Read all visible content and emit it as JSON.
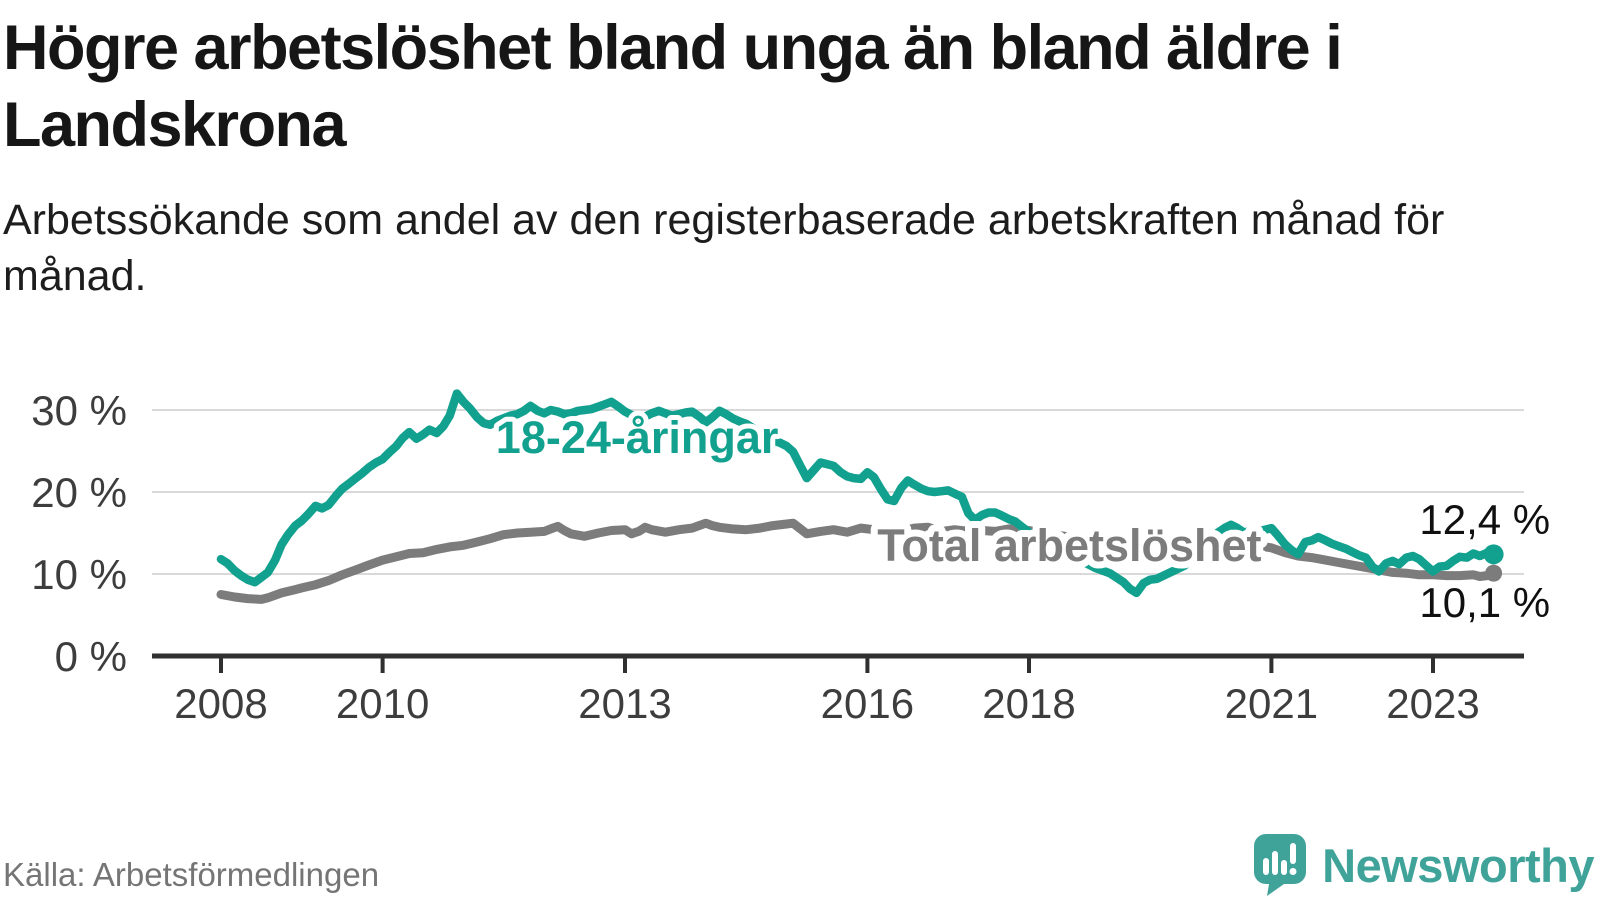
{
  "header": {
    "title": "Högre arbetslöshet bland unga än bland äldre i Landskrona",
    "subtitle": "Arbetssökande som andel av den registerbaserade arbetskraften månad för månad."
  },
  "footer": {
    "source": "Källa: Arbetsförmedlingen",
    "brand": "Newsworthy",
    "brand_icon": "newsworthy-speech-bubble-chart-icon",
    "brand_color": "#3fa39a"
  },
  "chart_data": {
    "type": "line",
    "unit": "%",
    "grid": true,
    "x_axis": {
      "ticks": [
        2008,
        2010,
        2013,
        2016,
        2018,
        2021,
        2023
      ],
      "labels": [
        "2008",
        "2010",
        "2013",
        "2016",
        "2018",
        "2021",
        "2023"
      ],
      "range": [
        2007.1,
        2024.1
      ]
    },
    "y_axis": {
      "ticks": [
        0,
        10,
        20,
        30
      ],
      "labels": [
        "0 %",
        "10 %",
        "20 %",
        "30 %"
      ],
      "range": [
        0,
        33
      ]
    },
    "series": [
      {
        "name": "18-24-åringar",
        "color": "#13a18f",
        "end_value": 12.4,
        "end_label": "12,4 %",
        "label_anchor": {
          "x": 2013.15,
          "y": 26.7
        },
        "end_label_anchor": {
          "x": 2024.45,
          "y": 14.9
        },
        "points": [
          [
            2008.0,
            11.8
          ],
          [
            2008.08,
            11.3
          ],
          [
            2008.17,
            10.4
          ],
          [
            2008.25,
            9.8
          ],
          [
            2008.33,
            9.3
          ],
          [
            2008.42,
            9.0
          ],
          [
            2008.5,
            9.6
          ],
          [
            2008.58,
            10.2
          ],
          [
            2008.67,
            11.7
          ],
          [
            2008.75,
            13.6
          ],
          [
            2008.83,
            14.8
          ],
          [
            2008.92,
            15.9
          ],
          [
            2009.0,
            16.5
          ],
          [
            2009.08,
            17.3
          ],
          [
            2009.17,
            18.3
          ],
          [
            2009.25,
            18.0
          ],
          [
            2009.33,
            18.4
          ],
          [
            2009.42,
            19.5
          ],
          [
            2009.5,
            20.4
          ],
          [
            2009.58,
            21.0
          ],
          [
            2009.67,
            21.7
          ],
          [
            2009.75,
            22.3
          ],
          [
            2009.83,
            23.0
          ],
          [
            2009.92,
            23.6
          ],
          [
            2010.0,
            24.0
          ],
          [
            2010.08,
            24.8
          ],
          [
            2010.17,
            25.6
          ],
          [
            2010.25,
            26.6
          ],
          [
            2010.33,
            27.3
          ],
          [
            2010.42,
            26.5
          ],
          [
            2010.5,
            27.0
          ],
          [
            2010.58,
            27.6
          ],
          [
            2010.67,
            27.2
          ],
          [
            2010.75,
            28.0
          ],
          [
            2010.83,
            29.3
          ],
          [
            2010.92,
            32.0
          ],
          [
            2011.0,
            31.0
          ],
          [
            2011.08,
            30.2
          ],
          [
            2011.17,
            29.1
          ],
          [
            2011.25,
            28.4
          ],
          [
            2011.33,
            28.2
          ],
          [
            2011.42,
            28.7
          ],
          [
            2011.5,
            29.0
          ],
          [
            2011.58,
            29.3
          ],
          [
            2011.67,
            29.5
          ],
          [
            2011.75,
            29.9
          ],
          [
            2011.83,
            30.5
          ],
          [
            2011.92,
            29.9
          ],
          [
            2012.0,
            29.6
          ],
          [
            2012.08,
            30.0
          ],
          [
            2012.17,
            29.8
          ],
          [
            2012.25,
            29.5
          ],
          [
            2012.33,
            29.6
          ],
          [
            2012.42,
            29.9
          ],
          [
            2012.5,
            30.0
          ],
          [
            2012.58,
            30.1
          ],
          [
            2012.67,
            30.4
          ],
          [
            2012.75,
            30.7
          ],
          [
            2012.83,
            31.0
          ],
          [
            2012.92,
            30.4
          ],
          [
            2013.0,
            29.8
          ],
          [
            2013.08,
            29.4
          ],
          [
            2013.17,
            29.1
          ],
          [
            2013.25,
            29.2
          ],
          [
            2013.33,
            29.6
          ],
          [
            2013.42,
            29.9
          ],
          [
            2013.5,
            29.6
          ],
          [
            2013.58,
            29.3
          ],
          [
            2013.67,
            29.5
          ],
          [
            2013.75,
            29.7
          ],
          [
            2013.83,
            29.8
          ],
          [
            2013.92,
            29.2
          ],
          [
            2014.0,
            28.5
          ],
          [
            2014.08,
            29.1
          ],
          [
            2014.17,
            29.9
          ],
          [
            2014.25,
            29.5
          ],
          [
            2014.33,
            29.0
          ],
          [
            2014.42,
            28.6
          ],
          [
            2014.5,
            28.3
          ],
          [
            2014.58,
            27.8
          ],
          [
            2014.67,
            27.2
          ],
          [
            2014.75,
            26.7
          ],
          [
            2014.83,
            26.3
          ],
          [
            2014.92,
            26.0
          ],
          [
            2015.0,
            25.6
          ],
          [
            2015.08,
            24.9
          ],
          [
            2015.17,
            23.2
          ],
          [
            2015.25,
            21.7
          ],
          [
            2015.33,
            22.6
          ],
          [
            2015.42,
            23.6
          ],
          [
            2015.5,
            23.4
          ],
          [
            2015.58,
            23.2
          ],
          [
            2015.67,
            22.4
          ],
          [
            2015.75,
            21.9
          ],
          [
            2015.83,
            21.7
          ],
          [
            2015.92,
            21.6
          ],
          [
            2016.0,
            22.4
          ],
          [
            2016.08,
            21.8
          ],
          [
            2016.17,
            20.3
          ],
          [
            2016.25,
            19.1
          ],
          [
            2016.33,
            18.9
          ],
          [
            2016.42,
            20.5
          ],
          [
            2016.5,
            21.4
          ],
          [
            2016.58,
            20.9
          ],
          [
            2016.67,
            20.4
          ],
          [
            2016.75,
            20.1
          ],
          [
            2016.83,
            20.0
          ],
          [
            2016.92,
            20.1
          ],
          [
            2017.0,
            20.2
          ],
          [
            2017.08,
            19.8
          ],
          [
            2017.17,
            19.4
          ],
          [
            2017.25,
            17.4
          ],
          [
            2017.33,
            16.6
          ],
          [
            2017.42,
            17.2
          ],
          [
            2017.5,
            17.5
          ],
          [
            2017.58,
            17.5
          ],
          [
            2017.67,
            17.1
          ],
          [
            2017.75,
            16.7
          ],
          [
            2017.83,
            16.4
          ],
          [
            2017.92,
            15.7
          ],
          [
            2018.0,
            15.1
          ],
          [
            2018.17,
            14.2
          ],
          [
            2018.33,
            13.2
          ],
          [
            2018.5,
            12.4
          ],
          [
            2018.67,
            11.5
          ],
          [
            2018.83,
            10.7
          ],
          [
            2019.0,
            10.1
          ],
          [
            2019.17,
            9.0
          ],
          [
            2019.25,
            8.2
          ],
          [
            2019.33,
            7.7
          ],
          [
            2019.42,
            8.9
          ],
          [
            2019.5,
            9.3
          ],
          [
            2019.58,
            9.4
          ],
          [
            2019.75,
            10.2
          ],
          [
            2019.92,
            11.0
          ],
          [
            2020.0,
            11.6
          ],
          [
            2020.08,
            12.2
          ],
          [
            2020.17,
            13.1
          ],
          [
            2020.25,
            14.3
          ],
          [
            2020.33,
            15.0
          ],
          [
            2020.42,
            15.6
          ],
          [
            2020.5,
            16.0
          ],
          [
            2020.58,
            15.6
          ],
          [
            2020.67,
            15.0
          ],
          [
            2020.75,
            15.4
          ],
          [
            2020.83,
            15.2
          ],
          [
            2020.92,
            15.4
          ],
          [
            2021.0,
            15.6
          ],
          [
            2021.08,
            14.7
          ],
          [
            2021.17,
            13.6
          ],
          [
            2021.25,
            12.9
          ],
          [
            2021.33,
            12.4
          ],
          [
            2021.42,
            13.9
          ],
          [
            2021.5,
            14.1
          ],
          [
            2021.58,
            14.5
          ],
          [
            2021.67,
            14.1
          ],
          [
            2021.75,
            13.7
          ],
          [
            2021.83,
            13.4
          ],
          [
            2021.92,
            13.1
          ],
          [
            2022.0,
            12.7
          ],
          [
            2022.08,
            12.3
          ],
          [
            2022.17,
            12.0
          ],
          [
            2022.25,
            10.9
          ],
          [
            2022.33,
            10.3
          ],
          [
            2022.42,
            11.3
          ],
          [
            2022.5,
            11.6
          ],
          [
            2022.58,
            11.2
          ],
          [
            2022.67,
            12.0
          ],
          [
            2022.75,
            12.2
          ],
          [
            2022.83,
            11.8
          ],
          [
            2022.92,
            11.0
          ],
          [
            2023.0,
            10.3
          ],
          [
            2023.08,
            10.9
          ],
          [
            2023.17,
            11.0
          ],
          [
            2023.25,
            11.6
          ],
          [
            2023.33,
            12.1
          ],
          [
            2023.42,
            12.0
          ],
          [
            2023.5,
            12.5
          ],
          [
            2023.58,
            12.2
          ],
          [
            2023.67,
            12.6
          ],
          [
            2023.75,
            12.4
          ]
        ]
      },
      {
        "name": "Total arbetslöshet",
        "color": "#7c7c7c",
        "end_value": 10.1,
        "end_label": "10,1 %",
        "label_anchor": {
          "x": 2018.5,
          "y": 13.55
        },
        "end_label_anchor": {
          "x": 2024.45,
          "y": 4.75
        },
        "points": [
          [
            2008.0,
            7.5
          ],
          [
            2008.17,
            7.2
          ],
          [
            2008.33,
            7.0
          ],
          [
            2008.5,
            6.9
          ],
          [
            2008.58,
            7.1
          ],
          [
            2008.75,
            7.7
          ],
          [
            2008.92,
            8.1
          ],
          [
            2009.0,
            8.3
          ],
          [
            2009.17,
            8.7
          ],
          [
            2009.33,
            9.2
          ],
          [
            2009.5,
            9.9
          ],
          [
            2009.67,
            10.5
          ],
          [
            2009.83,
            11.1
          ],
          [
            2010.0,
            11.7
          ],
          [
            2010.17,
            12.1
          ],
          [
            2010.33,
            12.5
          ],
          [
            2010.5,
            12.6
          ],
          [
            2010.67,
            13.0
          ],
          [
            2010.83,
            13.3
          ],
          [
            2011.0,
            13.5
          ],
          [
            2011.17,
            13.9
          ],
          [
            2011.33,
            14.3
          ],
          [
            2011.5,
            14.8
          ],
          [
            2011.67,
            15.0
          ],
          [
            2011.83,
            15.1
          ],
          [
            2012.0,
            15.2
          ],
          [
            2012.08,
            15.5
          ],
          [
            2012.17,
            15.8
          ],
          [
            2012.25,
            15.3
          ],
          [
            2012.33,
            14.9
          ],
          [
            2012.5,
            14.6
          ],
          [
            2012.67,
            15.0
          ],
          [
            2012.83,
            15.3
          ],
          [
            2013.0,
            15.4
          ],
          [
            2013.08,
            14.9
          ],
          [
            2013.17,
            15.2
          ],
          [
            2013.25,
            15.7
          ],
          [
            2013.33,
            15.4
          ],
          [
            2013.5,
            15.1
          ],
          [
            2013.67,
            15.4
          ],
          [
            2013.83,
            15.6
          ],
          [
            2014.0,
            16.2
          ],
          [
            2014.08,
            15.9
          ],
          [
            2014.17,
            15.7
          ],
          [
            2014.33,
            15.5
          ],
          [
            2014.5,
            15.4
          ],
          [
            2014.67,
            15.6
          ],
          [
            2014.83,
            15.9
          ],
          [
            2015.0,
            16.1
          ],
          [
            2015.08,
            16.2
          ],
          [
            2015.25,
            14.9
          ],
          [
            2015.42,
            15.2
          ],
          [
            2015.58,
            15.4
          ],
          [
            2015.75,
            15.1
          ],
          [
            2015.92,
            15.6
          ],
          [
            2016.08,
            15.4
          ],
          [
            2016.25,
            14.9
          ],
          [
            2016.42,
            15.2
          ],
          [
            2016.58,
            15.6
          ],
          [
            2016.75,
            15.7
          ],
          [
            2016.92,
            15.2
          ],
          [
            2017.08,
            15.4
          ],
          [
            2017.25,
            15.2
          ],
          [
            2017.42,
            15.3
          ],
          [
            2017.58,
            15.2
          ],
          [
            2017.75,
            15.5
          ],
          [
            2017.92,
            15.4
          ],
          [
            2018.08,
            15.2
          ],
          [
            2018.25,
            14.9
          ],
          [
            2018.5,
            14.5
          ],
          [
            2018.75,
            14.1
          ],
          [
            2019.0,
            13.8
          ],
          [
            2019.25,
            13.5
          ],
          [
            2019.5,
            13.3
          ],
          [
            2019.75,
            13.3
          ],
          [
            2019.92,
            13.5
          ],
          [
            2020.08,
            13.6
          ],
          [
            2020.25,
            13.8
          ],
          [
            2020.42,
            14.0
          ],
          [
            2020.58,
            13.8
          ],
          [
            2020.75,
            13.5
          ],
          [
            2020.92,
            13.3
          ],
          [
            2021.0,
            13.2
          ],
          [
            2021.17,
            12.6
          ],
          [
            2021.33,
            12.2
          ],
          [
            2021.5,
            12.0
          ],
          [
            2021.67,
            11.7
          ],
          [
            2021.83,
            11.4
          ],
          [
            2022.0,
            11.1
          ],
          [
            2022.17,
            10.8
          ],
          [
            2022.33,
            10.5
          ],
          [
            2022.5,
            10.2
          ],
          [
            2022.67,
            10.1
          ],
          [
            2022.83,
            9.9
          ],
          [
            2023.0,
            9.9
          ],
          [
            2023.17,
            9.8
          ],
          [
            2023.33,
            9.8
          ],
          [
            2023.5,
            9.9
          ],
          [
            2023.58,
            9.7
          ],
          [
            2023.67,
            9.8
          ],
          [
            2023.75,
            10.1
          ]
        ]
      }
    ]
  }
}
